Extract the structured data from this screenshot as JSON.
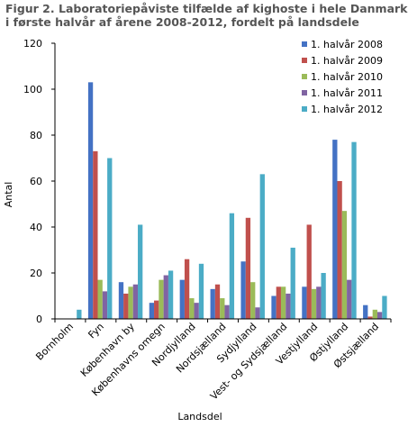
{
  "chart_data": {
    "type": "bar",
    "title_line1": "Figur 2. Laboratoriepåviste tilfælde af kighoste i hele Danmark",
    "title_line2": "i første halvår af årene 2008-2012, fordelt på landsdele",
    "xlabel": "Landsdel",
    "ylabel": "Antal",
    "ylim": [
      0,
      120
    ],
    "yticks": [
      0,
      20,
      40,
      60,
      80,
      100,
      120
    ],
    "grid": false,
    "legend_position": "top-right",
    "categories": [
      "Bornholm",
      "Fyn",
      "København by",
      "Københavns omegn",
      "Nordjylland",
      "Nordsjælland",
      "Sydjylland",
      "Vest- og Sydsjælland",
      "Vestjylland",
      "Østjylland",
      "Østsjælland"
    ],
    "series": [
      {
        "name": "1. halvår 2008",
        "color": "#4472C4",
        "values": [
          0,
          103,
          16,
          7,
          17,
          13,
          25,
          10,
          14,
          78,
          6
        ]
      },
      {
        "name": "1. halvår 2009",
        "color": "#C0504D",
        "values": [
          0,
          73,
          11,
          8,
          26,
          15,
          44,
          14,
          41,
          60,
          1
        ]
      },
      {
        "name": "1. halvår 2010",
        "color": "#9BBB59",
        "values": [
          0,
          17,
          14,
          17,
          9,
          9,
          16,
          14,
          13,
          47,
          4
        ]
      },
      {
        "name": "1. halvår 2011",
        "color": "#8064A2",
        "values": [
          0,
          12,
          15,
          19,
          7,
          6,
          5,
          11,
          14,
          17,
          3
        ]
      },
      {
        "name": "1. halvår 2012",
        "color": "#4BACC6",
        "values": [
          4,
          70,
          41,
          21,
          24,
          46,
          63,
          31,
          20,
          77,
          10
        ]
      }
    ]
  }
}
